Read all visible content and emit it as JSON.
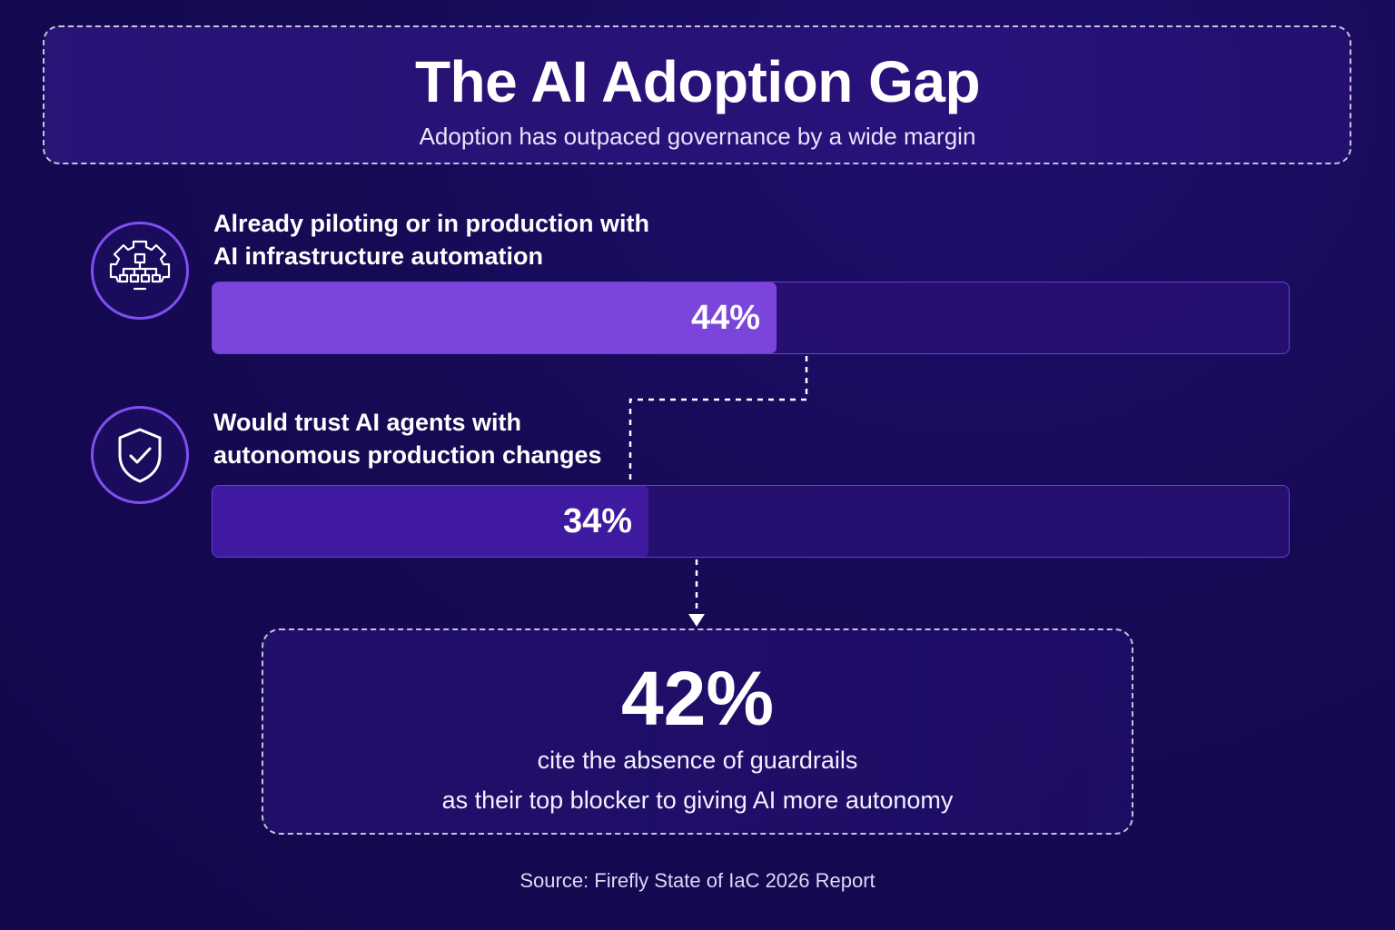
{
  "header": {
    "title": "The AI Adoption Gap",
    "subtitle": "Adoption has outpaced governance by a wide margin"
  },
  "stats": [
    {
      "label_line1": "Already piloting or in production with",
      "label_line2": "AI infrastructure automation",
      "value_label": "44%",
      "icon": "gear-network-icon",
      "fill_color": "#7b45dc"
    },
    {
      "label_line1": "Would trust AI agents with",
      "label_line2": "autonomous production changes",
      "value_label": "34%",
      "icon": "shield-check-icon",
      "fill_color": "#3f1aa0"
    }
  ],
  "chart_data": {
    "type": "bar",
    "orientation": "horizontal",
    "categories": [
      "Already piloting or in production with AI infrastructure automation",
      "Would trust AI agents with autonomous production changes"
    ],
    "values": [
      44,
      34
    ],
    "unit": "%",
    "xlim": [
      0,
      100
    ],
    "title": "The AI Adoption Gap",
    "subtitle": "Adoption has outpaced governance by a wide margin",
    "grid": false
  },
  "callout": {
    "number": "42%",
    "line1": "cite the absence of guardrails",
    "line2": "as their top blocker to giving AI more autonomy"
  },
  "source": "Source: Firefly State of IaC 2026 Report",
  "colors": {
    "background": "#160a55",
    "accent": "#7f4ff0",
    "bar1": "#7b45dc",
    "bar2": "#3f1aa0"
  }
}
